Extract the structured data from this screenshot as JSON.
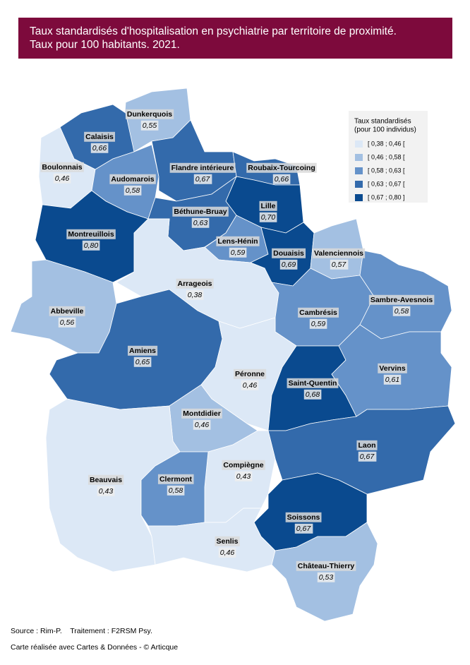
{
  "header": {
    "title_lines": [
      "Taux standardisés d'hospitalisation en psychiatrie par territoire de proximité.",
      "Taux pour 100 habitants. 2021."
    ]
  },
  "legend": {
    "title_lines": [
      "Taux standardisés",
      "(pour 100 individus)"
    ],
    "classes": [
      {
        "label": "[ 0,38 ; 0,46 [",
        "color": "#dce8f6"
      },
      {
        "label": "[ 0,46 ; 0,58 [",
        "color": "#a3c0e2"
      },
      {
        "label": "[ 0,58 ; 0,63 [",
        "color": "#6592c9"
      },
      {
        "label": "[ 0,63 ; 0,67 [",
        "color": "#336aab"
      },
      {
        "label": "[ 0,67 ; 0,80 ]",
        "color": "#0a4a8f"
      }
    ]
  },
  "regions": [
    {
      "name": "Dunkerquois",
      "value": 0.55,
      "label": "0,55",
      "color": "#a3c0e2"
    },
    {
      "name": "Calaisis",
      "value": 0.66,
      "label": "0,66",
      "color": "#336aab"
    },
    {
      "name": "Boulonnais",
      "value": 0.46,
      "label": "0,46",
      "color": "#dce8f6"
    },
    {
      "name": "Audomarois",
      "value": 0.58,
      "label": "0,58",
      "color": "#6592c9"
    },
    {
      "name": "Flandre intérieure",
      "value": 0.67,
      "label": "0,67",
      "color": "#336aab"
    },
    {
      "name": "Roubaix-Tourcoing",
      "value": 0.66,
      "label": "0,66",
      "color": "#336aab"
    },
    {
      "name": "Lille",
      "value": 0.7,
      "label": "0,70",
      "color": "#0a4a8f"
    },
    {
      "name": "Béthune-Bruay",
      "value": 0.63,
      "label": "0,63",
      "color": "#336aab"
    },
    {
      "name": "Montreuillois",
      "value": 0.8,
      "label": "0,80",
      "color": "#0a4a8f"
    },
    {
      "name": "Lens-Hénin",
      "value": 0.59,
      "label": "0,59",
      "color": "#6592c9"
    },
    {
      "name": "Douaisis",
      "value": 0.69,
      "label": "0,69",
      "color": "#0a4a8f"
    },
    {
      "name": "Valenciennois",
      "value": 0.57,
      "label": "0,57",
      "color": "#a3c0e2"
    },
    {
      "name": "Arrageois",
      "value": 0.38,
      "label": "0,38",
      "color": "#dce8f6"
    },
    {
      "name": "Abbeville",
      "value": 0.56,
      "label": "0,56",
      "color": "#a3c0e2"
    },
    {
      "name": "Cambrésis",
      "value": 0.59,
      "label": "0,59",
      "color": "#6592c9"
    },
    {
      "name": "Sambre-Avesnois",
      "value": 0.58,
      "label": "0,58",
      "color": "#6592c9"
    },
    {
      "name": "Amiens",
      "value": 0.65,
      "label": "0,65",
      "color": "#336aab"
    },
    {
      "name": "Péronne",
      "value": 0.46,
      "label": "0,46",
      "color": "#dce8f6"
    },
    {
      "name": "Saint-Quentin",
      "value": 0.68,
      "label": "0,68",
      "color": "#0a4a8f"
    },
    {
      "name": "Vervins",
      "value": 0.61,
      "label": "0,61",
      "color": "#6592c9"
    },
    {
      "name": "Montdidier",
      "value": 0.46,
      "label": "0,46",
      "color": "#a3c0e2"
    },
    {
      "name": "Laon",
      "value": 0.67,
      "label": "0,67",
      "color": "#336aab"
    },
    {
      "name": "Compiègne",
      "value": 0.43,
      "label": "0,43",
      "color": "#dce8f6"
    },
    {
      "name": "Beauvais",
      "value": 0.43,
      "label": "0,43",
      "color": "#dce8f6"
    },
    {
      "name": "Clermont",
      "value": 0.58,
      "label": "0,58",
      "color": "#6592c9"
    },
    {
      "name": "Soissons",
      "value": 0.67,
      "label": "0,67",
      "color": "#0a4a8f"
    },
    {
      "name": "Senlis",
      "value": 0.46,
      "label": "0,46",
      "color": "#dce8f6"
    },
    {
      "name": "Château-Thierry",
      "value": 0.53,
      "label": "0,53",
      "color": "#a3c0e2"
    }
  ],
  "footer": {
    "source": "Source : Rim-P.    Traitement : F2RSM Psy.",
    "credit": "Carte réalisée avec Cartes & Données - © Articque"
  }
}
